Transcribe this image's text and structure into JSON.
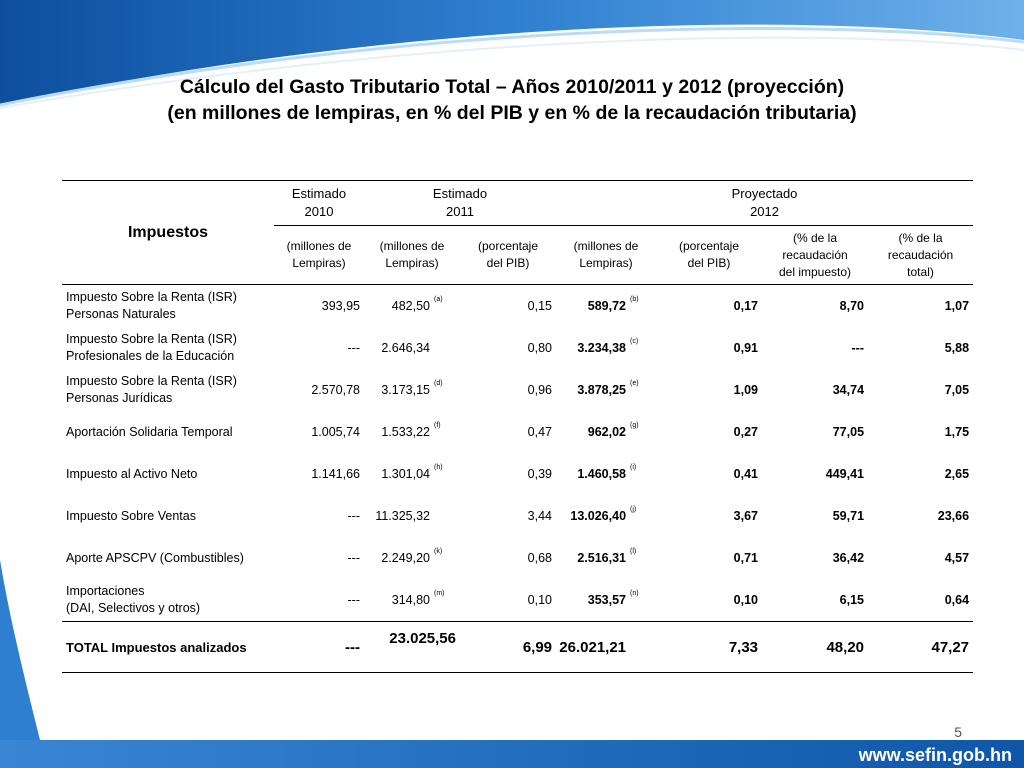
{
  "title": {
    "line1": "Cálculo del Gasto Tributario Total – Años 2010/2011 y 2012 (proyección)",
    "line2": "(en  millones de lempiras, en % del PIB y en % de la recaudación tributaria)"
  },
  "table": {
    "impuestos_header": "Impuestos",
    "groups": {
      "g2010": [
        "Estimado",
        "2010"
      ],
      "g2011": [
        "Estimado",
        "2011"
      ],
      "g2012": [
        "Proyectado",
        "2012"
      ]
    },
    "units": [
      [
        "(millones de",
        "Lempiras)"
      ],
      [
        "(millones de",
        "Lempiras)"
      ],
      [
        "(porcentaje",
        "del PIB)"
      ],
      [
        "(millones de",
        "Lempiras)"
      ],
      [
        "(porcentaje",
        "del PIB)"
      ],
      [
        "(% de la",
        "recaudación",
        "del impuesto)"
      ],
      [
        "(% de la",
        "recaudación",
        "total)"
      ]
    ],
    "rows": [
      {
        "name": [
          "Impuesto Sobre la Renta (ISR)",
          "Personas Naturales"
        ],
        "e2010": "393,95",
        "e2011": "482,50",
        "n2011": "(a)",
        "pib2011": "0,15",
        "p2012": "589,72",
        "n2012": "(b)",
        "pib2012": "0,17",
        "rec_imp": "8,70",
        "rec_tot": "1,07"
      },
      {
        "name": [
          "Impuesto Sobre la Renta (ISR)",
          "Profesionales de la Educación"
        ],
        "e2010": "---",
        "e2011": "2.646,34",
        "n2011": "",
        "pib2011": "0,80",
        "p2012": "3.234,38",
        "n2012": "(c)",
        "pib2012": "0,91",
        "rec_imp": "---",
        "rec_tot": "5,88"
      },
      {
        "name": [
          "Impuesto Sobre la Renta (ISR)",
          "Personas Jurídicas"
        ],
        "e2010": "2.570,78",
        "e2011": "3.173,15",
        "n2011": "(d)",
        "pib2011": "0,96",
        "p2012": "3.878,25",
        "n2012": "(e)",
        "pib2012": "1,09",
        "rec_imp": "34,74",
        "rec_tot": "7,05"
      },
      {
        "name": [
          "Aportación Solidaria Temporal"
        ],
        "e2010": "1.005,74",
        "e2011": "1.533,22",
        "n2011": "(f)",
        "pib2011": "0,47",
        "p2012": "962,02",
        "n2012": "(g)",
        "pib2012": "0,27",
        "rec_imp": "77,05",
        "rec_tot": "1,75"
      },
      {
        "name": [
          "Impuesto al Activo Neto"
        ],
        "e2010": "1.141,66",
        "e2011": "1.301,04",
        "n2011": "(h)",
        "pib2011": "0,39",
        "p2012": "1.460,58",
        "n2012": "(i)",
        "pib2012": "0,41",
        "rec_imp": "449,41",
        "rec_tot": "2,65"
      },
      {
        "name": [
          "Impuesto Sobre Ventas"
        ],
        "e2010": "---",
        "e2011": "11.325,32",
        "n2011": "",
        "pib2011": "3,44",
        "p2012": "13.026,40",
        "n2012": "(j)",
        "pib2012": "3,67",
        "rec_imp": "59,71",
        "rec_tot": "23,66"
      },
      {
        "name": [
          "Aporte APSCPV (Combustibles)"
        ],
        "e2010": "---",
        "e2011": "2.249,20",
        "n2011": "(k)",
        "pib2011": "0,68",
        "p2012": "2.516,31",
        "n2012": "(l)",
        "pib2012": "0,71",
        "rec_imp": "36,42",
        "rec_tot": "4,57"
      },
      {
        "name": [
          "Importaciones",
          "(DAI, Selectivos y otros)"
        ],
        "e2010": "---",
        "e2011": "314,80",
        "n2011": "(m)",
        "pib2011": "0,10",
        "p2012": "353,57",
        "n2012": "(n)",
        "pib2012": "0,10",
        "rec_imp": "6,15",
        "rec_tot": "0,64"
      }
    ],
    "total": {
      "name": "TOTAL Impuestos analizados",
      "e2010": "---",
      "e2011": "23.025,56",
      "pib2011": "6,99",
      "p2012": "26.021,21",
      "pib2012": "7,33",
      "rec_imp": "48,20",
      "rec_tot": "47,27"
    }
  },
  "footer": {
    "page_number": "5",
    "url": "www.sefin.gob.hn"
  },
  "colors": {
    "primary_blue": "#1f6fc0",
    "light_blue": "#6aa9e0",
    "footer_blue": "#1565b8"
  }
}
